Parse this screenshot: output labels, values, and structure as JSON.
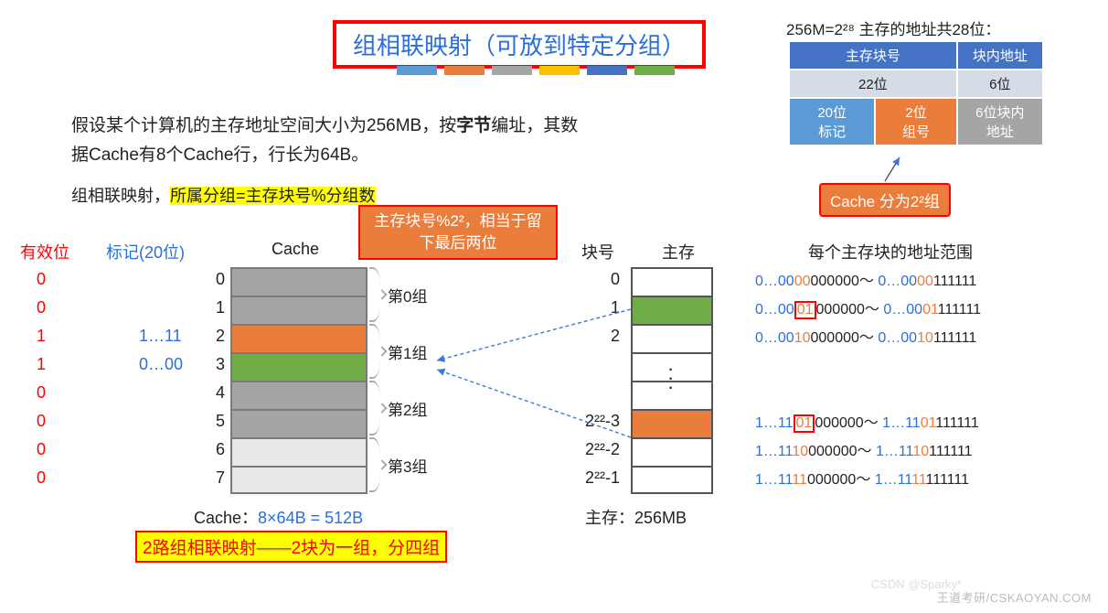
{
  "title": "组相联映射（可放到特定分组）",
  "color_strip": [
    "#5b9bd5",
    "#eb7d3c",
    "#a5a5a5",
    "#ffc000",
    "#4472c4",
    "#70ad47"
  ],
  "top_info": "256M=2²⁸ 主存的地址共28位：",
  "top_table": {
    "h1": "主存块号",
    "h2": "块内地址",
    "r1a": "22位",
    "r1b": "6位",
    "r2a": "20位\n标记",
    "r2b": "2位\n组号",
    "r2c": "6位块内\n地址",
    "colors": {
      "h": "#4472c4",
      "r1": "#d6dce5",
      "tag": "#5b9bd5",
      "grp": "#eb7d3c",
      "off": "#a5a5a5"
    }
  },
  "cache_groups_tag": "Cache 分为2²组",
  "problem1": "假设某个计算机的主存地址空间大小为256MB，按",
  "problem_bold": "字节",
  "problem2": "编址，其数据Cache有8个Cache行，行长为64B。",
  "formula_pre": "组相联映射，",
  "formula_hl": "所属分组=主存块号%分组数",
  "note_box": "主存块号%2²，相当于留下最后两位",
  "headers": {
    "valid": "有效位",
    "tag": "标记(20位)",
    "cache": "Cache",
    "blk": "块号",
    "mem": "主存",
    "range": "每个主存块的地址范围"
  },
  "valid_bits": [
    "0",
    "0",
    "1",
    "1",
    "0",
    "0",
    "0",
    "0"
  ],
  "tags": [
    "",
    "",
    "1…11",
    "0…00",
    "",
    "",
    "",
    ""
  ],
  "cache_idx": [
    "0",
    "1",
    "2",
    "3",
    "4",
    "5",
    "6",
    "7"
  ],
  "cache_colors": [
    "#a5a5a5",
    "#a5a5a5",
    "#eb7d3c",
    "#70ad47",
    "#a5a5a5",
    "#a5a5a5",
    "#e8e8e8",
    "#e8e8e8"
  ],
  "group_labels": [
    "第0组",
    "第1组",
    "第2组",
    "第3组"
  ],
  "mem_labels": [
    "0",
    "1",
    "2",
    "",
    "",
    "2²²-3",
    "2²²-2",
    "2²²-1"
  ],
  "mem_colors": [
    "#ffffff",
    "#70ad47",
    "#ffffff",
    "#ffffff",
    "#ffffff",
    "#eb7d3c",
    "#ffffff",
    "#ffffff"
  ],
  "addr_ranges": [
    {
      "a1": "0…00",
      "a2": "00",
      "a3": "000000",
      "b1": "0…00",
      "b2": "00",
      "b3": "111111",
      "box": false
    },
    {
      "a1": "0…00",
      "a2": "01",
      "a3": "000000",
      "b1": "0…00",
      "b2": "01",
      "b3": "111111",
      "box": true
    },
    {
      "a1": "0…00",
      "a2": "10",
      "a3": "000000",
      "b1": "0…00",
      "b2": "10",
      "b3": "111111",
      "box": false
    }
  ],
  "addr_ranges2": [
    {
      "a1": "1…11",
      "a2": "01",
      "a3": "000000",
      "b1": "1…11",
      "b2": "01",
      "b3": "111111",
      "box": true
    },
    {
      "a1": "1…11",
      "a2": "10",
      "a3": "000000",
      "b1": "1…11",
      "b2": "10",
      "b3": "111111",
      "box": false
    },
    {
      "a1": "1…11",
      "a2": "11",
      "a3": "000000",
      "b1": "1…11",
      "b2": "11",
      "b3": "111111",
      "box": false
    }
  ],
  "cache_size": "Cache：",
  "cache_size_v": "8×64B = 512B",
  "mem_size": "主存：256MB",
  "bottom_hl": "2路组相联映射——2块为一组，分四组",
  "footer": "王道考研/CSKAOYAN.COM",
  "wm": "CSDN @Sparky*",
  "tilde": "～"
}
